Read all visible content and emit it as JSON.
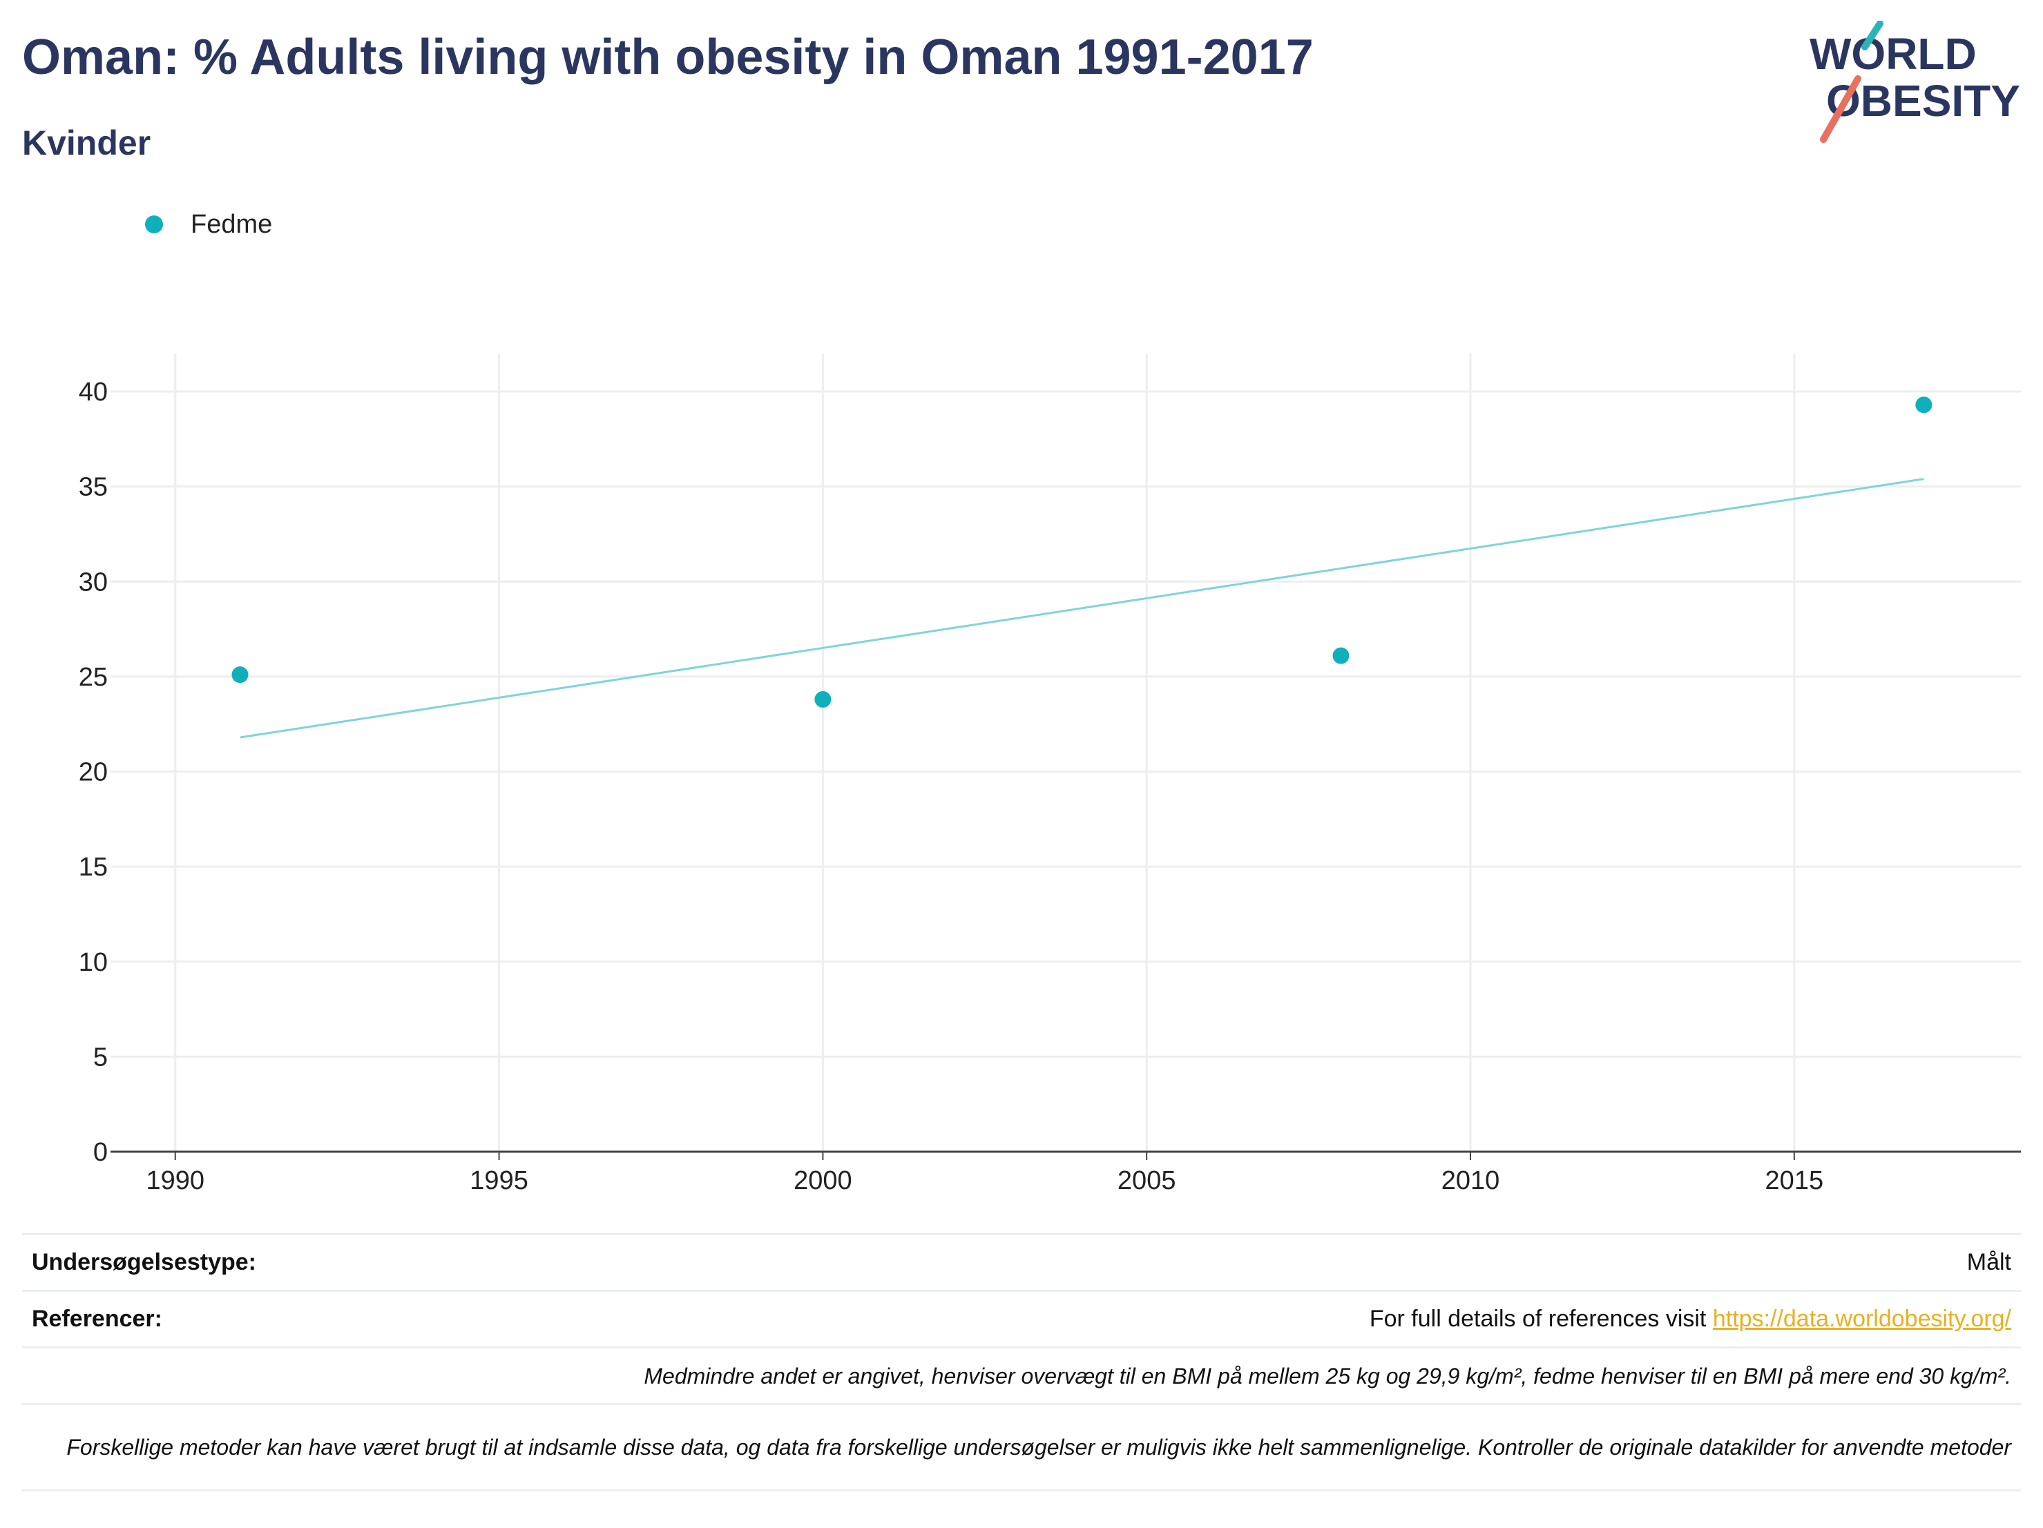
{
  "header": {
    "title": "Oman: % Adults living with obesity in Oman 1991-2017",
    "subtitle": "Kvinder"
  },
  "logo": {
    "line1": "WORLD",
    "line2": "OBESITY",
    "colors": {
      "text": "#2b3660",
      "slash_teal": "#2ab3b8",
      "slash_red": "#e8705e"
    }
  },
  "legend": {
    "items": [
      {
        "label": "Fedme",
        "color": "#0fb0bb"
      }
    ],
    "placement": "top-left"
  },
  "chart_data": {
    "type": "scatter",
    "title": "",
    "xlabel": "",
    "ylabel": "",
    "xlim": [
      1989,
      2018.5
    ],
    "ylim": [
      0,
      42
    ],
    "x_ticks": [
      1990,
      1995,
      2000,
      2005,
      2010,
      2015
    ],
    "y_ticks": [
      0,
      5,
      10,
      15,
      20,
      25,
      30,
      35,
      40
    ],
    "grid": true,
    "series": [
      {
        "name": "Fedme",
        "color": "#0fb0bb",
        "points": [
          {
            "x": 1991,
            "y": 25.1
          },
          {
            "x": 2000,
            "y": 23.8
          },
          {
            "x": 2008,
            "y": 26.1
          },
          {
            "x": 2017,
            "y": 39.3
          }
        ]
      }
    ],
    "trendline": {
      "color": "#80d4d9",
      "points": [
        {
          "x": 1991,
          "y": 21.8
        },
        {
          "x": 2017,
          "y": 35.4
        }
      ]
    }
  },
  "info_table": {
    "survey_type_label": "Undersøgelsestype:",
    "survey_type_value": "Målt",
    "references_label": "Referencer:",
    "references_text": "For full details of references visit",
    "references_link": "https://data.worldobesity.org/",
    "note_bmi": "Medmindre andet er angivet, henviser overvægt til en BMI på mellem 25 kg og 29,9 kg/m², fedme henviser til en BMI på mere end 30 kg/m².",
    "note_methods": "Forskellige metoder kan have været brugt til at indsamle disse data, og data fra forskellige undersøgelser er muligvis ikke helt sammenlignelige. Kontroller de originale datakilder for anvendte metoder"
  }
}
